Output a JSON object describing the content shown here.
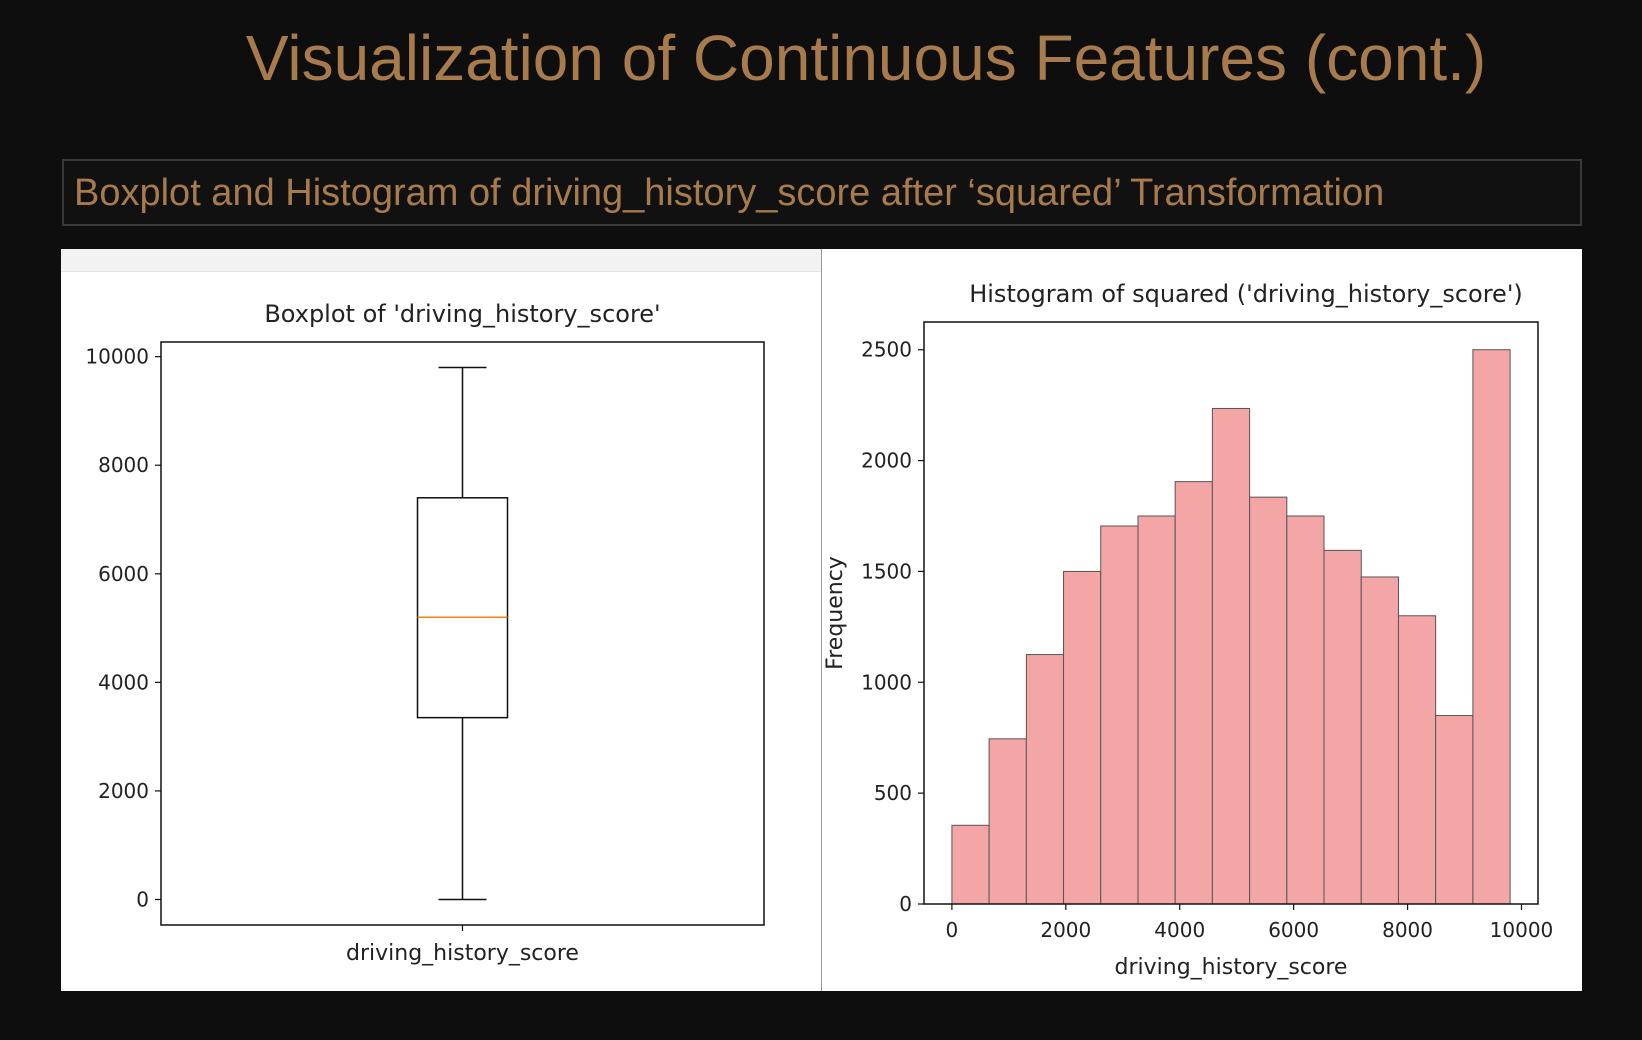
{
  "slide": {
    "title": "Visualization of Continuous Features (cont.)",
    "subtitle": "Boxplot and Histogram of driving_history_score after ‘squared’ Transformation"
  },
  "colors": {
    "title": "#a87b4c",
    "background": "#0e0e0e",
    "median_line": "#ff7f0e",
    "bar_fill": "#f4a6a6",
    "bar_edge": "#555555"
  },
  "chart_data": [
    {
      "type": "box",
      "title": "Boxplot of 'driving_history_score'",
      "xlabel": "",
      "ylabel": "",
      "category": "driving_history_score",
      "whisker_low": 0,
      "q1": 3350,
      "median": 5200,
      "q3": 7400,
      "whisker_high": 9800,
      "ylim": [
        -470,
        10270
      ],
      "yticks": [
        0,
        2000,
        4000,
        6000,
        8000,
        10000
      ]
    },
    {
      "type": "bar",
      "title": "Histogram of squared ('driving_history_score')",
      "xlabel": "driving_history_score",
      "ylabel": "Frequency",
      "bin_edges": [
        0,
        653,
        1307,
        1960,
        2613,
        3267,
        3920,
        4573,
        5227,
        5880,
        6533,
        7187,
        7840,
        8493,
        9147,
        9800
      ],
      "values": [
        355,
        745,
        1125,
        1500,
        1705,
        1750,
        1905,
        2235,
        1835,
        1750,
        1595,
        1475,
        1300,
        850,
        2500
      ],
      "xlim": [
        -490,
        10290
      ],
      "ylim": [
        0,
        2625
      ],
      "xticks": [
        0,
        2000,
        4000,
        6000,
        8000,
        10000
      ],
      "yticks": [
        0,
        500,
        1000,
        1500,
        2000,
        2500
      ]
    }
  ]
}
